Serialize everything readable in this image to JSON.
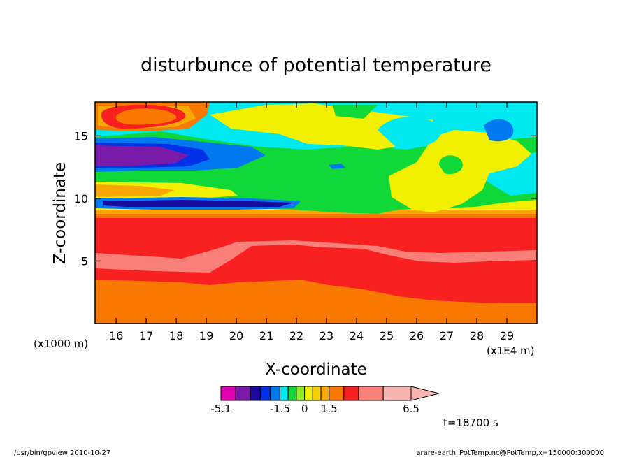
{
  "chart_data": {
    "type": "heatmap",
    "title": "disturbunce of potential temperature",
    "xlabel": "X-coordinate",
    "ylabel": "Z-coordinate",
    "x_unit_label": "(x1E4 m)",
    "y_unit_label": "(x1000 m)",
    "xlim": [
      15.3,
      30.0
    ],
    "ylim": [
      0,
      17.7
    ],
    "x_ticks": [
      16,
      17,
      18,
      19,
      20,
      21,
      22,
      23,
      24,
      25,
      26,
      27,
      28,
      29
    ],
    "y_ticks": [
      5,
      10,
      15
    ],
    "grid": false,
    "colorbar": {
      "labels": [
        "-5.1",
        "-1.5",
        "0",
        "1.5",
        "6.5"
      ],
      "levels": [
        -5.1,
        -4.2,
        -3.3,
        -2.7,
        -2.1,
        -1.5,
        -1.0,
        -0.5,
        0,
        0.5,
        1.0,
        1.5,
        2.4,
        3.3,
        4.8,
        6.5
      ],
      "colors": [
        "#e000b0",
        "#7a1aa8",
        "#1a0aa0",
        "#0030e8",
        "#0078f0",
        "#00e8f0",
        "#10d838",
        "#90ec20",
        "#f0f000",
        "#f8d000",
        "#f8a800",
        "#f87800",
        "#f82020",
        "#f88078",
        "#f8b4b0"
      ]
    },
    "time_label": "t=18700 s",
    "footer_left": "/usr/bin/gpview   2010-10-27",
    "footer_right": "arare-earth_PotTemp.nc@PotTemp,x=150000:300000"
  }
}
